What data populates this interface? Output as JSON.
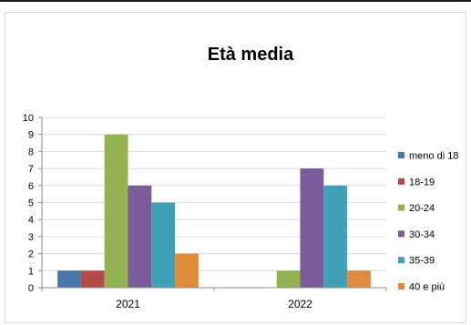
{
  "chart_data": {
    "type": "bar",
    "title": "Età media",
    "categories": [
      "2021",
      "2022"
    ],
    "series": [
      {
        "name": "meno di 18",
        "color": "#4a76ad",
        "values": [
          1,
          0
        ]
      },
      {
        "name": "18-19",
        "color": "#b54a48",
        "values": [
          1,
          0
        ]
      },
      {
        "name": "20-24",
        "color": "#93b352",
        "values": [
          9,
          1
        ]
      },
      {
        "name": "30-34",
        "color": "#7a5c9a",
        "values": [
          6,
          7
        ]
      },
      {
        "name": "35-39",
        "color": "#40a0b8",
        "values": [
          5,
          6
        ]
      },
      {
        "name": "40 e più",
        "color": "#e08a3c",
        "values": [
          2,
          1
        ]
      }
    ],
    "ylim": [
      0,
      10
    ],
    "yticks": [
      "0",
      "1",
      "2",
      "3",
      "4",
      "5",
      "6",
      "7",
      "8",
      "9",
      "10"
    ],
    "grid": true,
    "legend": "right"
  }
}
